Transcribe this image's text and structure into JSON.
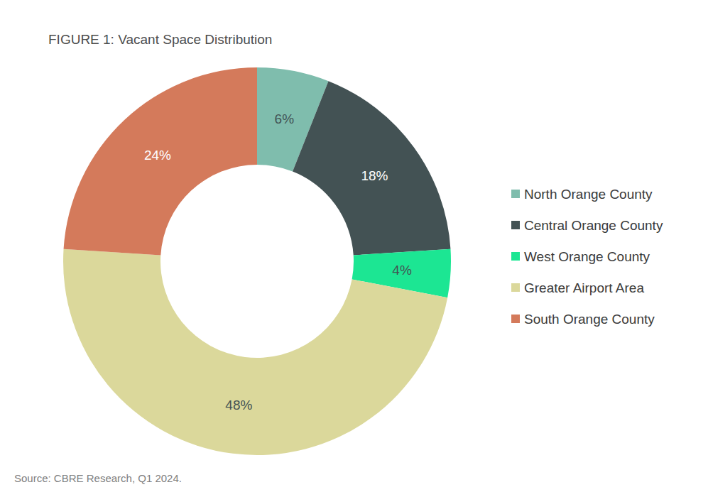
{
  "chart_data": {
    "type": "donut",
    "title": "FIGURE 1: Vacant Space Distribution",
    "categories": [
      "North Orange County",
      "Central Orange County",
      "West Orange County",
      "Greater Airport Area",
      "South Orange County"
    ],
    "values": [
      6,
      18,
      4,
      48,
      24
    ],
    "value_labels": [
      "6%",
      "18%",
      "4%",
      "48%",
      "24%"
    ],
    "colors": [
      "#7fbdad",
      "#435254",
      "#1ce693",
      "#dbd89b",
      "#d47a5b"
    ],
    "data_labels": true,
    "legend": "right",
    "source": "Source: CBRE Research, Q1 2024."
  }
}
